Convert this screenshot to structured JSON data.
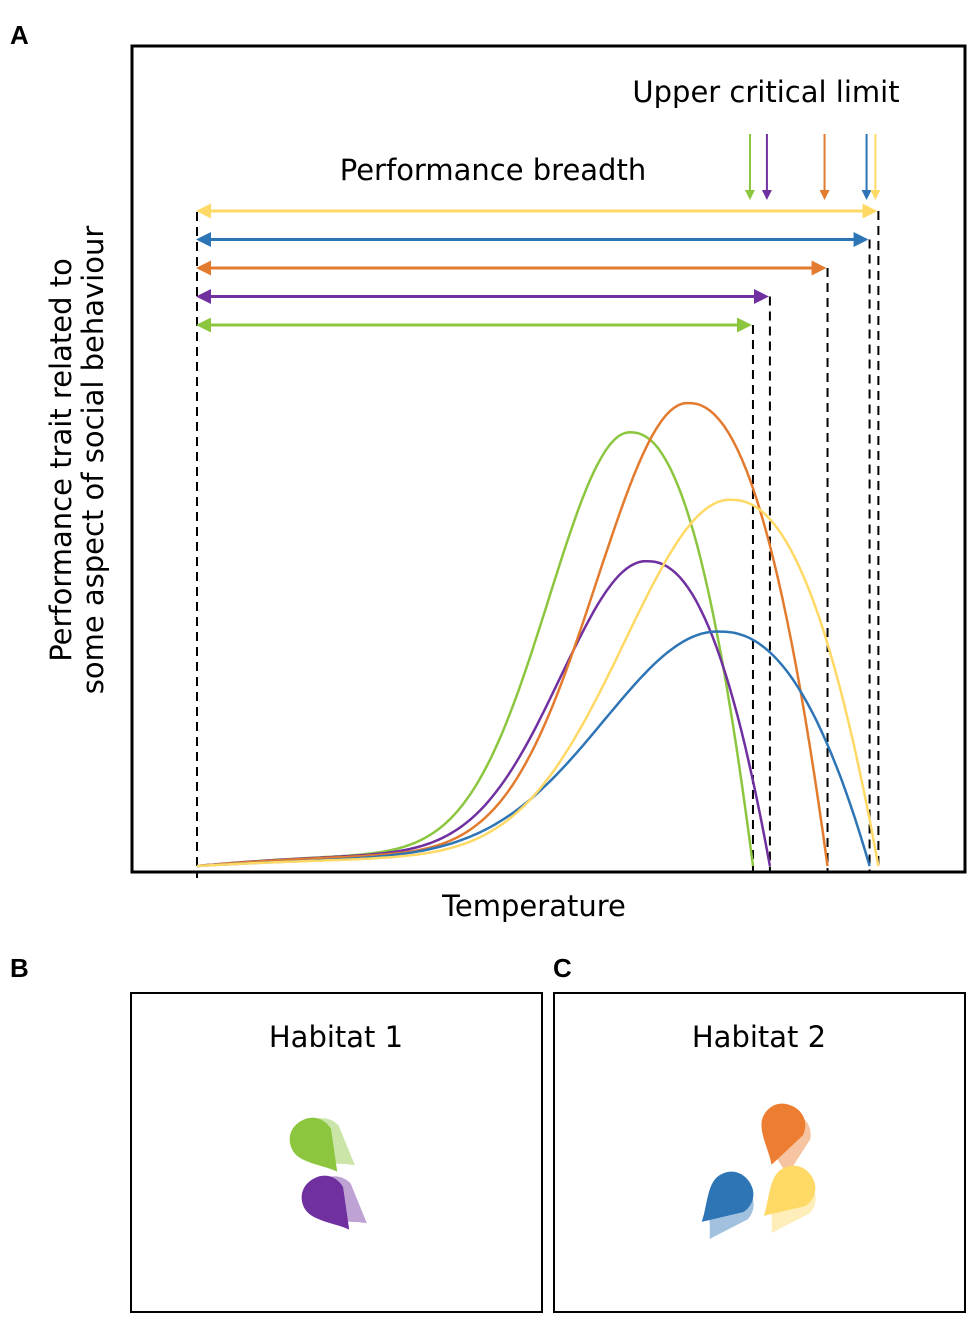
{
  "panels": {
    "a": {
      "letter": "A"
    },
    "b": {
      "letter": "B",
      "habitat_label": "Habitat 1"
    },
    "c": {
      "letter": "C",
      "habitat_label": "Habitat 2"
    }
  },
  "chart_data": {
    "type": "line",
    "title": "",
    "xlabel": "Temperature",
    "ylabel_lines": [
      "Performance trait related to",
      "some aspect of social behaviour"
    ],
    "annotations": {
      "upper_critical_limit": "Upper critical limit",
      "performance_breadth": "Performance breadth"
    },
    "x_range": [
      0,
      100
    ],
    "y_range": [
      0,
      100
    ],
    "ct_min": 0,
    "series": [
      {
        "name": "green",
        "color": "#8cc63f",
        "ct_max": 82.0,
        "peak_x": 64.0,
        "peak_y": 74.0,
        "width": 17,
        "tail": 3.5
      },
      {
        "name": "purple",
        "color": "#7030a0",
        "ct_max": 84.5,
        "peak_x": 66.5,
        "peak_y": 52.0,
        "width": 18,
        "tail": 3.5
      },
      {
        "name": "orange",
        "color": "#e37b2e",
        "ct_max": 93.0,
        "peak_x": 72.5,
        "peak_y": 79.0,
        "width": 19,
        "tail": 3.5
      },
      {
        "name": "blue",
        "color": "#2e75b6",
        "ct_max": 99.2,
        "peak_x": 77.2,
        "peak_y": 40.0,
        "width": 24,
        "tail": 2.5
      },
      {
        "name": "yellow",
        "color": "#ffd966",
        "ct_max": 100.5,
        "peak_x": 78.8,
        "peak_y": 62.5,
        "width": 22,
        "tail": 2.5
      }
    ]
  },
  "habitats": {
    "habitat1": {
      "individuals": [
        {
          "name": "green",
          "color": "#8cc63f",
          "fill_opacity": 1
        },
        {
          "name": "purple",
          "color": "#7030a0",
          "fill_opacity": 1
        }
      ]
    },
    "habitat2": {
      "individuals": [
        {
          "name": "orange",
          "color": "#ed7d31",
          "fill_opacity": 1
        },
        {
          "name": "blue",
          "color": "#2e75b6",
          "fill_opacity": 1
        },
        {
          "name": "yellow",
          "color": "#ffd966",
          "fill_opacity": 1
        }
      ]
    }
  }
}
